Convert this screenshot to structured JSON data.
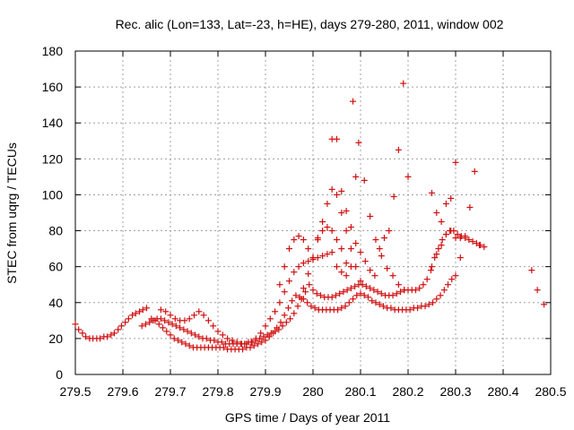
{
  "chart_data": {
    "type": "scatter",
    "title": "Rec. alic (Lon=133, Lat=-23, h=HE), days 279-280, 2011, window 002",
    "xlabel": "GPS time / Days of year 2011",
    "ylabel": "STEC from uqrg / TECUs",
    "xlim": [
      279.5,
      280.5
    ],
    "ylim": [
      0,
      180
    ],
    "xticks": [
      279.5,
      279.6,
      279.7,
      279.8,
      279.9,
      280,
      280.1,
      280.2,
      280.3,
      280.4,
      280.5
    ],
    "xtick_labels": [
      "279.5",
      "279.6",
      "279.7",
      "279.8",
      "279.9",
      "280",
      "280.1",
      "280.2",
      "280.3",
      "280.4",
      "280.5"
    ],
    "yticks": [
      0,
      20,
      40,
      60,
      80,
      100,
      120,
      140,
      160,
      180
    ],
    "ytick_labels": [
      "0",
      "20",
      "40",
      "60",
      "80",
      "100",
      "120",
      "140",
      "160",
      "180"
    ],
    "grid": true,
    "marker": "+",
    "color": "#d01010",
    "series": [
      {
        "x": [
          279.5,
          279.507,
          279.515,
          279.522,
          279.53,
          279.537,
          279.545,
          279.552,
          279.56,
          279.567,
          279.575,
          279.582,
          279.59,
          279.597,
          279.605,
          279.612,
          279.62,
          279.627,
          279.635,
          279.642,
          279.65
        ],
        "y": [
          28,
          25,
          23,
          21,
          20,
          20,
          20,
          20,
          21,
          21,
          22,
          23,
          25,
          27,
          29,
          31,
          33,
          34,
          35,
          36,
          37
        ]
      },
      {
        "x": [
          279.64,
          279.648,
          279.656,
          279.664,
          279.672,
          279.68,
          279.688,
          279.696,
          279.704,
          279.712,
          279.72,
          279.728,
          279.736,
          279.744,
          279.752,
          279.76,
          279.768,
          279.776,
          279.784,
          279.792,
          279.8,
          279.808,
          279.816,
          279.824,
          279.832,
          279.84,
          279.848,
          279.856,
          279.864,
          279.872,
          279.88,
          279.888,
          279.896,
          279.904,
          279.912,
          279.92,
          279.928,
          279.936,
          279.944,
          279.952,
          279.96,
          279.968,
          279.976,
          279.984,
          279.992,
          280.0,
          280.008,
          280.016,
          280.024,
          280.032,
          280.04,
          280.048,
          280.056,
          280.064,
          280.072,
          280.08,
          280.088,
          280.096,
          280.104,
          280.112,
          280.12,
          280.128,
          280.136,
          280.144,
          280.152,
          280.16,
          280.168,
          280.176,
          280.184,
          280.192,
          280.2,
          280.208,
          280.216,
          280.224,
          280.232,
          280.24,
          280.248,
          280.256,
          280.264,
          280.272,
          280.28,
          280.288,
          280.296,
          280.304,
          280.312,
          280.32,
          280.328,
          280.336,
          280.344,
          280.352,
          280.36
        ],
        "y": [
          27,
          28,
          29,
          30,
          31,
          31,
          30,
          29,
          28,
          27,
          26,
          25,
          24,
          23,
          22,
          21,
          20,
          20,
          19,
          19,
          18,
          18,
          17,
          17,
          17,
          17,
          17,
          17,
          18,
          18,
          19,
          20,
          21,
          22,
          23,
          24,
          25,
          27,
          29,
          31,
          34,
          38,
          42,
          46,
          50,
          47,
          45,
          44,
          43,
          43,
          43,
          44,
          45,
          46,
          47,
          48,
          49,
          50,
          50,
          49,
          48,
          47,
          46,
          45,
          44,
          44,
          44,
          45,
          46,
          47,
          47,
          47,
          47,
          48,
          50,
          53,
          58,
          65,
          70,
          75,
          78,
          80,
          80,
          78,
          77,
          76,
          75,
          74,
          73,
          72,
          71
        ]
      },
      {
        "x": [
          279.66,
          279.668,
          279.676,
          279.684,
          279.692,
          279.7,
          279.708,
          279.716,
          279.724,
          279.732,
          279.74,
          279.748,
          279.756,
          279.764,
          279.772,
          279.78,
          279.788,
          279.796,
          279.804,
          279.812,
          279.82,
          279.828,
          279.836,
          279.844,
          279.852,
          279.86,
          279.868,
          279.876,
          279.884,
          279.892,
          279.9,
          279.908,
          279.916,
          279.924,
          279.932,
          279.94,
          279.948,
          279.956,
          279.964,
          279.972,
          279.98,
          279.988,
          279.996,
          280.004,
          280.012,
          280.02,
          280.028,
          280.036,
          280.044,
          280.052,
          280.06,
          280.068,
          280.076,
          280.084,
          280.092,
          280.1,
          280.108,
          280.116,
          280.124,
          280.132,
          280.14,
          280.148,
          280.156,
          280.164,
          280.172,
          280.18,
          280.188,
          280.196,
          280.204,
          280.212,
          280.22,
          280.228,
          280.236,
          280.244,
          280.252,
          280.26,
          280.268,
          280.276,
          280.284,
          280.292,
          280.3
        ],
        "y": [
          31,
          30,
          28,
          26,
          24,
          22,
          20,
          19,
          18,
          17,
          16,
          15,
          15,
          15,
          15,
          15,
          15,
          15,
          15,
          15,
          14,
          14,
          14,
          14,
          14,
          15,
          15,
          16,
          17,
          18,
          19,
          21,
          23,
          26,
          29,
          33,
          37,
          41,
          44,
          43,
          42,
          40,
          38,
          37,
          36,
          36,
          36,
          36,
          36,
          36,
          37,
          38,
          40,
          42,
          44,
          45,
          44,
          43,
          41,
          40,
          39,
          38,
          37,
          37,
          36,
          36,
          36,
          36,
          36,
          37,
          37,
          38,
          38,
          39,
          40,
          42,
          44,
          47,
          50,
          53,
          55
        ]
      },
      {
        "x": [
          279.68,
          279.69,
          279.7,
          279.71,
          279.72,
          279.73,
          279.74,
          279.75,
          279.76,
          279.77,
          279.78,
          279.79,
          279.8,
          279.81,
          279.82,
          279.83,
          279.84,
          279.85,
          279.86,
          279.87,
          279.88,
          279.89,
          279.9,
          279.91,
          279.92,
          279.93,
          279.94,
          279.95,
          279.96,
          279.97,
          279.98,
          279.99,
          280.0,
          280.01,
          280.02,
          280.03,
          280.04,
          280.05,
          280.06,
          280.07
        ],
        "y": [
          36,
          35,
          33,
          31,
          30,
          30,
          31,
          33,
          35,
          33,
          30,
          27,
          24,
          22,
          20,
          19,
          18,
          17,
          17,
          18,
          20,
          23,
          27,
          31,
          35,
          40,
          46,
          52,
          57,
          60,
          62,
          63,
          64,
          65,
          66,
          67,
          68,
          60,
          57,
          55
        ]
      },
      {
        "x": [
          279.93,
          279.94,
          279.95,
          279.96,
          279.97,
          279.98,
          279.99,
          280.0,
          280.01,
          280.02,
          280.03,
          280.04,
          280.05,
          280.06,
          280.07,
          280.08,
          280.09
        ],
        "y": [
          50,
          60,
          70,
          75,
          77,
          75,
          70,
          65,
          76,
          80,
          82,
          80,
          75,
          70,
          62,
          60,
          110
        ]
      },
      {
        "x": [
          279.98,
          279.99,
          280.0,
          280.01,
          280.02,
          280.03,
          280.04,
          280.05,
          280.06,
          280.07,
          280.08,
          280.09,
          280.1
        ],
        "y": [
          48,
          56,
          65,
          75,
          85,
          95,
          103,
          100,
          90,
          80,
          70,
          60,
          52
        ]
      },
      {
        "x": [
          280.04,
          280.05,
          280.06,
          280.07,
          280.08,
          280.09,
          280.1,
          280.11,
          280.12,
          280.13,
          280.14,
          280.15,
          280.16,
          280.17,
          280.18,
          280.19,
          280.2
        ],
        "y": [
          131,
          131,
          102,
          91,
          82,
          73,
          68,
          63,
          58,
          55,
          70,
          76,
          80,
          99,
          125,
          162,
          110
        ]
      },
      {
        "x": [
          280.084,
          280.096,
          280.108,
          280.12,
          280.132,
          280.144,
          280.156,
          280.168,
          280.18,
          280.192
        ],
        "y": [
          152,
          129,
          108,
          88,
          75,
          66,
          59,
          55,
          50,
          47
        ]
      },
      {
        "x": [
          280.25,
          280.26,
          280.27,
          280.28,
          280.29,
          280.3,
          280.31,
          280.32,
          280.33,
          280.34,
          280.35
        ],
        "y": [
          101,
          90,
          85,
          95,
          98,
          118,
          76,
          77,
          93,
          113,
          72
        ]
      },
      {
        "x": [
          280.25,
          280.26,
          280.27,
          280.28,
          280.29,
          280.3,
          280.31
        ],
        "y": [
          60,
          67,
          72,
          78,
          80,
          76,
          65
        ]
      },
      {
        "x": [
          280.46,
          280.472,
          280.486
        ],
        "y": [
          58,
          47,
          39
        ]
      }
    ]
  }
}
